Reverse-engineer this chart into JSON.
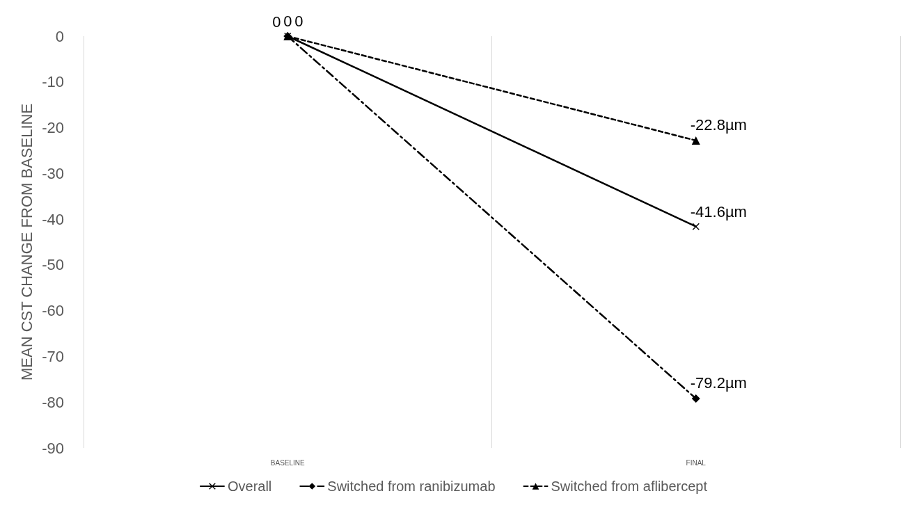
{
  "chart_data": {
    "type": "line",
    "ylabel": "MEAN CST CHANGE FROM BASELINE",
    "categories": [
      "BASELINE",
      "FINAL"
    ],
    "series": [
      {
        "name": "Overall",
        "color": "#000000",
        "values": [
          0,
          -41.6
        ],
        "value_labels": [
          "0",
          "-41.6µm"
        ],
        "marker": "cross",
        "line_style": "solid"
      },
      {
        "name": "Switched from ranibizumab",
        "color": "#000000",
        "values": [
          0,
          -79.2
        ],
        "value_labels": [
          "0",
          "-79.2µm"
        ],
        "marker": "diamond",
        "line_style": "dashdot"
      },
      {
        "name": "Switched from aflibercept",
        "color": "#000000",
        "values": [
          0,
          -22.8
        ],
        "value_labels": [
          "0",
          "-22.8µm"
        ],
        "marker": "triangle",
        "line_style": "dashed"
      }
    ],
    "ylim": [
      -90,
      0
    ],
    "yticks": [
      0,
      -10,
      -20,
      -30,
      -40,
      -50,
      -60,
      -70,
      -80,
      -90
    ],
    "grid": "x",
    "legend": "bottom"
  }
}
